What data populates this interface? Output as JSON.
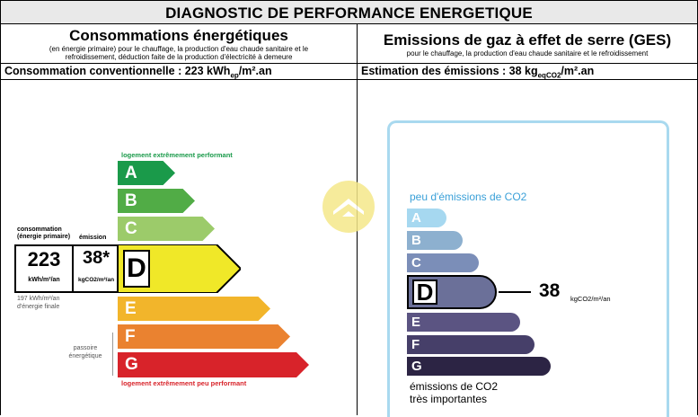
{
  "title": "DIAGNOSTIC DE PERFORMANCE ENERGETIQUE",
  "left": {
    "heading": "Consommations énergétiques",
    "sub1": "(en énergie primaire) pour le chauffage, la production d'eau chaude sanitaire et le",
    "sub2": "refroidissement, déduction faite de la production d'électricité à demeure",
    "estimate_prefix": "Consommation conventionnelle : 223 kWh",
    "estimate_sub": "ep",
    "estimate_suffix": "/m².an",
    "top_label": "logement extrêmement performant",
    "bottom_label": "logement extrêmement peu performant",
    "box_label1": "consommation",
    "box_label2": "(énergie primaire)",
    "box_label3": "émission",
    "conso_value": "223",
    "conso_unit": "kWh/m²/an",
    "emission_value": "38*",
    "emission_unit": "kgCO2/m²/an",
    "final_line1": "197 kWh/m²/an",
    "final_line2": "d'énergie finale",
    "passoire1": "passoire",
    "passoire2": "énergétique",
    "classes": [
      "A",
      "B",
      "C",
      "D",
      "E",
      "F",
      "G"
    ],
    "colors": [
      "#1a9a4a",
      "#51ac46",
      "#9ccb6a",
      "#f0e828",
      "#f2b52b",
      "#ea8230",
      "#d8232a"
    ],
    "active_class": "D"
  },
  "right": {
    "heading": "Emissions de gaz à effet de serre (GES)",
    "sub": "pour le chauffage, la production d'eau chaude sanitaire et le refroidissement",
    "estimate_prefix": "Estimation des émissions : 38 kg",
    "estimate_sub": "eqCO2",
    "estimate_suffix": "/m².an",
    "top_label": "peu d'émissions de CO2",
    "bottom_label1": "émissions de CO2",
    "bottom_label2": "très importantes",
    "classes": [
      "A",
      "B",
      "C",
      "D",
      "E",
      "F",
      "G"
    ],
    "colors": [
      "#a6d8f0",
      "#8db0cf",
      "#7b8eb8",
      "#6b7099",
      "#5b5482",
      "#463f69",
      "#2c2444"
    ],
    "active_class": "D",
    "value": "38",
    "unit": "kgCO2/m²/an"
  }
}
